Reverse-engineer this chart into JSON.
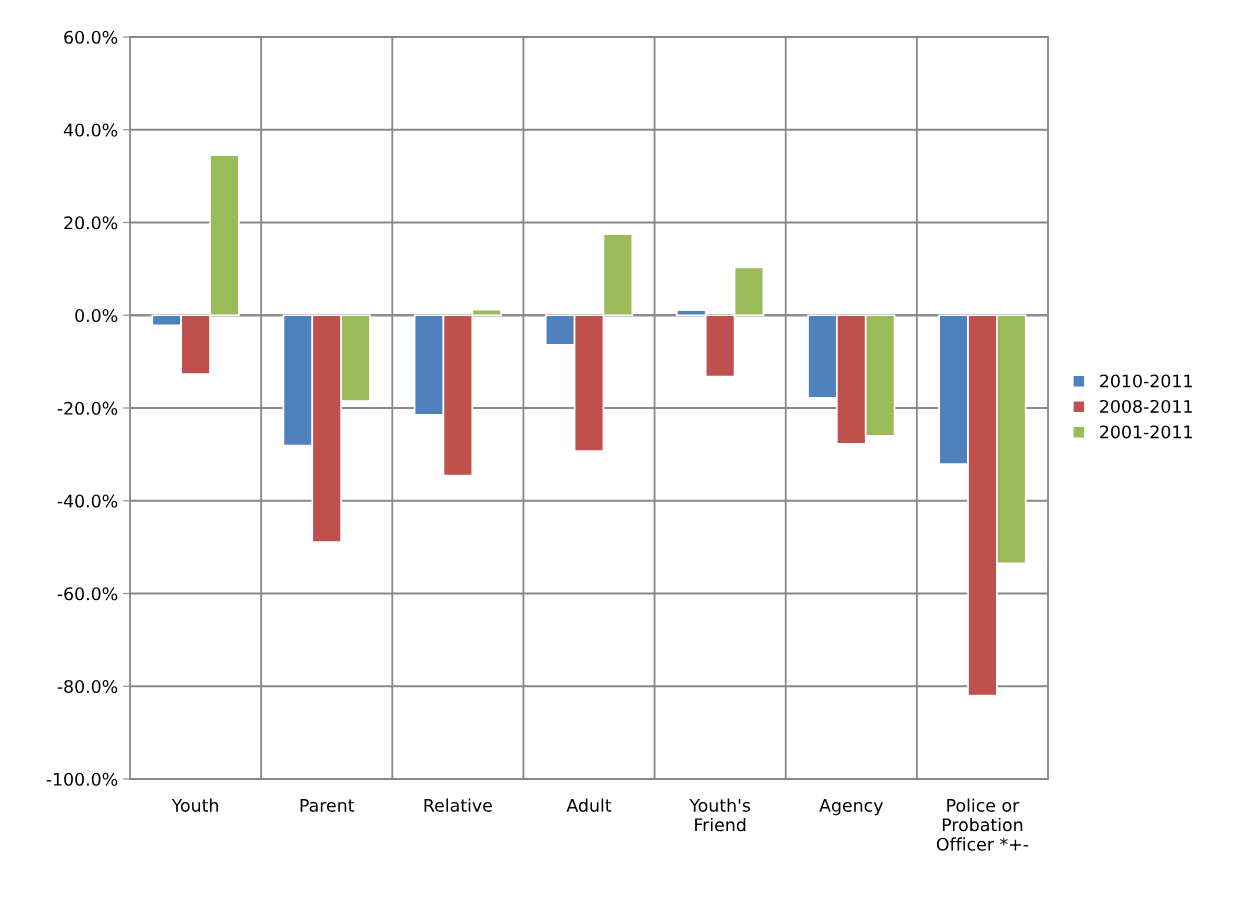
{
  "chart_data": {
    "type": "bar",
    "categories": [
      "Youth",
      "Parent",
      "Relative",
      "Adult",
      "Youth's\nFriend",
      "Agency",
      "Police or\nProbation\nOfficer *+-"
    ],
    "series": [
      {
        "name": "2010-2011",
        "color": "#4f81bd",
        "values": [
          -2.2,
          -28.1,
          -21.5,
          -6.4,
          1.1,
          -17.8,
          -32.1
        ]
      },
      {
        "name": "2008-2011",
        "color": "#c0504d",
        "values": [
          -12.7,
          -48.9,
          -34.6,
          -29.3,
          -13.2,
          -27.7,
          -82.0
        ]
      },
      {
        "name": "2001-2011",
        "color": "#9bbb59",
        "values": [
          34.5,
          -18.5,
          1.2,
          17.5,
          10.3,
          -26.0,
          -53.5
        ]
      }
    ],
    "ylim": [
      -100,
      60
    ],
    "yticks": [
      {
        "value": -100,
        "label": "-100.0%"
      },
      {
        "value": -80,
        "label": "-80.0%"
      },
      {
        "value": -60,
        "label": "-60.0%"
      },
      {
        "value": -40,
        "label": "-40.0%"
      },
      {
        "value": -20,
        "label": "-20.0%"
      },
      {
        "value": 0,
        "label": "0.0%"
      },
      {
        "value": 20,
        "label": "20.0%"
      },
      {
        "value": 40,
        "label": "40.0%"
      },
      {
        "value": 60,
        "label": "60.0%"
      }
    ],
    "grid": true,
    "legend": "right"
  }
}
